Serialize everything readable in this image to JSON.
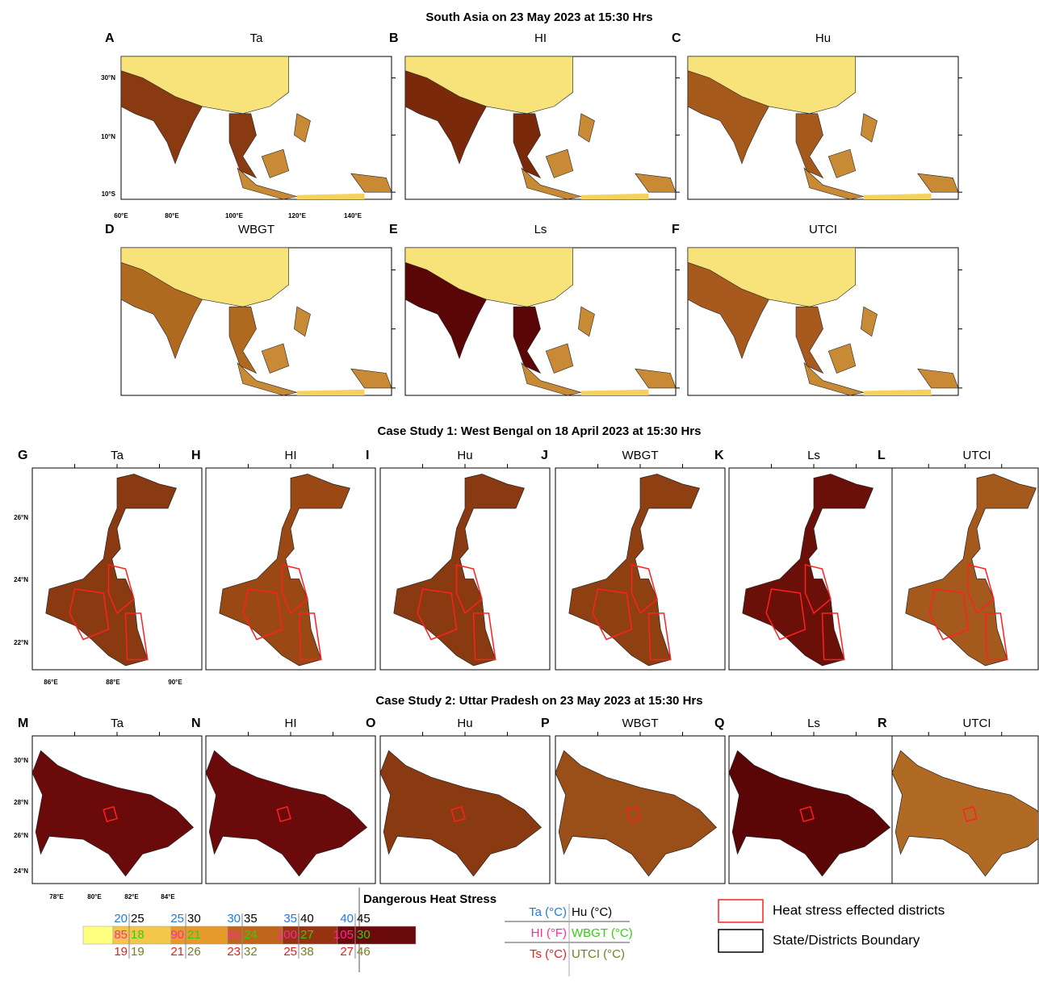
{
  "title": "South Asia on 23 May 2023 at 15:30 Hrs",
  "south_asia": {
    "panels": [
      {
        "letter": "A",
        "label": "Ta"
      },
      {
        "letter": "B",
        "label": "HI"
      },
      {
        "letter": "C",
        "label": "Hu"
      },
      {
        "letter": "D",
        "label": "WBGT"
      },
      {
        "letter": "E",
        "label": "Ls"
      },
      {
        "letter": "F",
        "label": "UTCI"
      }
    ],
    "lat_ticks": [
      "30°N",
      "10°N",
      "10°S"
    ],
    "lon_ticks": [
      "60°E",
      "80°E",
      "100°E",
      "120°E",
      "140°E"
    ]
  },
  "case_study_1": {
    "title": "Case Study 1: West Bengal on 18  April 2023 at 15:30 Hrs",
    "panels": [
      {
        "letter": "G",
        "label": "Ta"
      },
      {
        "letter": "H",
        "label": "HI"
      },
      {
        "letter": "I",
        "label": "Hu"
      },
      {
        "letter": "J",
        "label": "WBGT"
      },
      {
        "letter": "K",
        "label": "Ls"
      },
      {
        "letter": "L",
        "label": "UTCI"
      }
    ],
    "lat_ticks": [
      "26°N",
      "24°N",
      "22°N"
    ],
    "lon_ticks": [
      "86°E",
      "88°E",
      "90°E"
    ]
  },
  "case_study_2": {
    "title": "Case Study 2: Uttar Pradesh on 23  May 2023 at 15:30 Hrs",
    "panels": [
      {
        "letter": "M",
        "label": "Ta"
      },
      {
        "letter": "N",
        "label": "HI"
      },
      {
        "letter": "O",
        "label": "Hu"
      },
      {
        "letter": "P",
        "label": "WBGT"
      },
      {
        "letter": "Q",
        "label": "Ls"
      },
      {
        "letter": "R",
        "label": "UTCI"
      }
    ],
    "lat_ticks": [
      "30°N",
      "28°N",
      "26°N",
      "24°N"
    ],
    "lon_ticks": [
      "78°E",
      "80°E",
      "82°E",
      "84°E"
    ]
  },
  "legend": {
    "title": "Dangerous Heat Stress",
    "scale": [
      {
        "ta": 20,
        "hu": 25,
        "hi": 85,
        "wbgt": 18,
        "ts": 19,
        "utci": 19
      },
      {
        "ta": 25,
        "hu": 30,
        "hi": 90,
        "wbgt": 21,
        "ts": 21,
        "utci": 26
      },
      {
        "ta": 30,
        "hu": 35,
        "hi": 95,
        "wbgt": 24,
        "ts": 23,
        "utci": 32
      },
      {
        "ta": 35,
        "hu": 40,
        "hi": 100,
        "wbgt": 27,
        "ts": 25,
        "utci": 38
      },
      {
        "ta": 40,
        "hu": 45,
        "hi": 105,
        "wbgt": 30,
        "ts": 27,
        "utci": 46
      }
    ],
    "key": [
      [
        "Ta (°C)",
        "Hu (°C)"
      ],
      [
        "HI (°F)",
        "WBGT (°C)"
      ],
      [
        "Ts (°C)",
        "UTCI (°C)"
      ]
    ],
    "items": [
      "Heat stress effected districts",
      "State/Districts Boundary"
    ]
  }
}
